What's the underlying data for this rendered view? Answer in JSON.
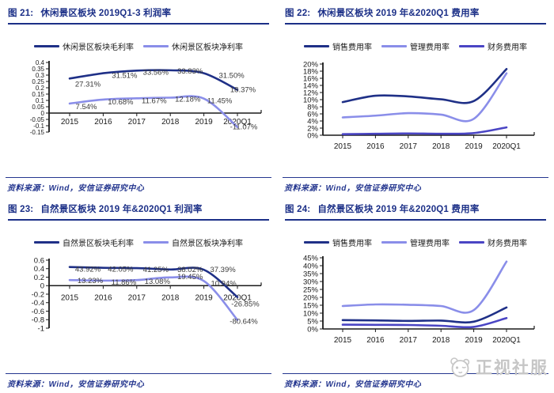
{
  "watermark": {
    "text": "正视社服",
    "icon": "panda-face-icon"
  },
  "chart_data": [
    {
      "fig_label": "图 21:",
      "title": "休闲景区板块 2019Q1-3 利润率",
      "source": "资料来源：Wind，安信证券研究中心",
      "type": "line",
      "grid": false,
      "legend_position": "top",
      "categories": [
        "2015",
        "2016",
        "2017",
        "2018",
        "2019",
        "2020Q1"
      ],
      "y_axis": {
        "unit": "ratio",
        "max": 40,
        "min": -15,
        "tick_labels": [
          "0.4",
          "0.35",
          "0.3",
          "0.25",
          "0.2",
          "0.15",
          "0.1",
          "0.05",
          "0",
          "-0.05",
          "-0.1",
          "-0.15"
        ],
        "tick_values": [
          40,
          35,
          30,
          25,
          20,
          15,
          10,
          5,
          0,
          -5,
          -10,
          -15
        ]
      },
      "series": [
        {
          "name": "休闲景区板块毛利率",
          "color": "#1f3087",
          "values": [
            27.31,
            31.51,
            33.56,
            33.83,
            31.5,
            18.37
          ],
          "labels": [
            "27.31%",
            "31.51%",
            "33.56%",
            "33.83%",
            "31.50%",
            "18.37%"
          ],
          "label_offsets": [
            [
              23,
              7
            ],
            [
              27,
              3
            ],
            [
              24,
              2
            ],
            [
              25,
              1
            ],
            [
              35,
              3
            ],
            [
              7,
              0
            ]
          ]
        },
        {
          "name": "休闲景区板块净利率",
          "color": "#8a8ee9",
          "values": [
            7.54,
            10.68,
            11.67,
            12.18,
            11.45,
            -11.07
          ],
          "labels": [
            "7.54%",
            "10.68%",
            "11.67%",
            "12.18%",
            "11.45%",
            "-11.07%"
          ],
          "label_offsets": [
            [
              21,
              4
            ],
            [
              22,
              3
            ],
            [
              22,
              3
            ],
            [
              22,
              2
            ],
            [
              20,
              3
            ],
            [
              8,
              0
            ]
          ]
        }
      ]
    },
    {
      "fig_label": "图 22:",
      "title": "休闲景区板块 2019 年&2020Q1 费用率",
      "source": "资料来源：Wind，安信证券研究中心",
      "type": "line",
      "grid": false,
      "legend_position": "top",
      "categories": [
        "2015",
        "2016",
        "2017",
        "2018",
        "2019",
        "2020Q1"
      ],
      "y_axis": {
        "unit": "percent",
        "max": 20,
        "min": 0,
        "tick_labels": [
          "20%",
          "18%",
          "16%",
          "14%",
          "12%",
          "10%",
          "8%",
          "6%",
          "4%",
          "2%",
          "0%"
        ],
        "tick_values": [
          20,
          18,
          16,
          14,
          12,
          10,
          8,
          6,
          4,
          2,
          0
        ]
      },
      "series": [
        {
          "name": "销售费用率",
          "color": "#1f3087",
          "values": [
            9.3,
            11.1,
            10.9,
            10.1,
            9.6,
            18.6
          ]
        },
        {
          "name": "管理费用率",
          "color": "#8a8ee9",
          "values": [
            5.0,
            5.5,
            6.2,
            5.8,
            4.6,
            17.4
          ]
        },
        {
          "name": "财务费用率",
          "color": "#4a45c4",
          "values": [
            0.3,
            0.4,
            0.5,
            0.4,
            0.6,
            2.2
          ]
        }
      ]
    },
    {
      "fig_label": "图 23:",
      "title": "自然景区板块 2019 年&2020Q1 利润率",
      "source": "资料来源：Wind，安信证券研究中心",
      "type": "line",
      "grid": false,
      "legend_position": "top",
      "categories": [
        "2015",
        "2016",
        "2017",
        "2018",
        "2019",
        "2020Q1"
      ],
      "y_axis": {
        "unit": "ratio",
        "max": 60,
        "min": -100,
        "tick_labels": [
          "0.6",
          "0.4",
          "0.2",
          "0",
          "-0.2",
          "-0.4",
          "-0.6",
          "-0.8",
          "-1"
        ],
        "tick_values": [
          60,
          40,
          20,
          0,
          -20,
          -40,
          -60,
          -80,
          -100
        ]
      },
      "series": [
        {
          "name": "自然景区板块毛利率",
          "color": "#1f3087",
          "values": [
            43.92,
            42.05,
            41.25,
            38.02,
            37.39,
            -26.85
          ],
          "labels": [
            "43.92%",
            "42.05%",
            "41.25%",
            "38.02%",
            "37.39%",
            "-26.85%"
          ],
          "label_offsets": [
            [
              23,
              3
            ],
            [
              22,
              2
            ],
            [
              24,
              2
            ],
            [
              25,
              0
            ],
            [
              24,
              0
            ],
            [
              10,
              9
            ]
          ]
        },
        {
          "name": "自然景区板块净利率",
          "color": "#8a8ee9",
          "values": [
            13.23,
            11.86,
            13.08,
            19.45,
            10.94,
            -80.64
          ],
          "labels": [
            "13.23%",
            "11.86%",
            "13.08%",
            "19.45%",
            "10.94%",
            "-80.64%"
          ],
          "label_offsets": [
            [
              26,
              1
            ],
            [
              26,
              2
            ],
            [
              26,
              2
            ],
            [
              25,
              -1
            ],
            [
              25,
              3
            ],
            [
              8,
              2
            ]
          ]
        }
      ]
    },
    {
      "fig_label": "图 24:",
      "title": "自然景区板块 2019 年&2020Q1 费用率",
      "source": "资料来源：Wind，安信证券研究中心",
      "type": "line",
      "grid": false,
      "legend_position": "top",
      "categories": [
        "2015",
        "2016",
        "2017",
        "2018",
        "2019",
        "2020Q1"
      ],
      "y_axis": {
        "unit": "percent",
        "max": 45,
        "min": 0,
        "tick_labels": [
          "45%",
          "40%",
          "35%",
          "30%",
          "25%",
          "20%",
          "15%",
          "10%",
          "5%",
          "0%"
        ],
        "tick_values": [
          45,
          40,
          35,
          30,
          25,
          20,
          15,
          10,
          5,
          0
        ]
      },
      "series": [
        {
          "name": "销售费用率",
          "color": "#1f3087",
          "values": [
            5.6,
            5.4,
            5.1,
            5.3,
            4.6,
            13.6
          ]
        },
        {
          "name": "管理费用率",
          "color": "#8a8ee9",
          "values": [
            14.5,
            15.5,
            15.3,
            14.5,
            11.9,
            42.6
          ]
        },
        {
          "name": "财务费用率",
          "color": "#4a45c4",
          "values": [
            2.7,
            2.6,
            2.5,
            2.0,
            1.3,
            6.9
          ]
        }
      ]
    }
  ]
}
